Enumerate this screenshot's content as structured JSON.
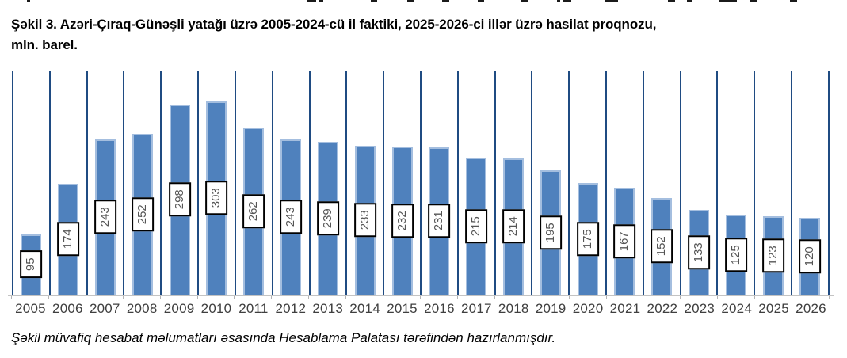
{
  "page": {
    "title_line1": "Şəkil 3. Azəri-Çıraq-Günəşli yatağı üzrə 2005-2024-cü il faktiki, 2025-2026-ci illər üzrə hasilat proqnozu,",
    "title_line2": "mln. barel.",
    "footnote": "Şəkil müvafiq hesabat məlumatları əsasında Hesablama Palatası tərəfindən hazırlanmışdır."
  },
  "chart_data": {
    "type": "bar",
    "title": "Şəkil 3. Azəri-Çıraq-Günəşli yatağı üzrə 2005-2024-cü il faktiki, 2025-2026-ci illər üzrə hasilat proqnozu, mln. barel.",
    "categories": [
      "2005",
      "2006",
      "2007",
      "2008",
      "2009",
      "2010",
      "2011",
      "2012",
      "2013",
      "2014",
      "2015",
      "2016",
      "2017",
      "2018",
      "2019",
      "2020",
      "2021",
      "2022",
      "2023",
      "2024",
      "2025",
      "2026"
    ],
    "values": [
      95,
      174,
      243,
      252,
      298,
      303,
      262,
      243,
      239,
      233,
      232,
      231,
      215,
      214,
      195,
      175,
      167,
      152,
      133,
      125,
      123,
      120
    ],
    "xlabel": "",
    "ylabel": "",
    "ylim": [
      0,
      350
    ],
    "grid": "vertical category separator lines only",
    "legend": "none",
    "data_labels": "values in white boxes with black border, rotated 90° reading bottom-to-top, centered on each bar",
    "colors": {
      "bar_fill": "#4F81BD",
      "bar_edge": "#A4BEDF",
      "gridline": "#1F4B82",
      "axis_line": "#C3C3C3",
      "tick": "#B3B3B3",
      "x_tick_label": "#3F3F3F",
      "data_label_text": "#555555",
      "data_label_border": "#000000",
      "data_label_bg": "#FFFFFF"
    }
  },
  "top_remnant": {
    "marks": [
      [
        34,
        4
      ],
      [
        388,
        11
      ],
      [
        402,
        6
      ],
      [
        468,
        8
      ],
      [
        514,
        8
      ],
      [
        558,
        9
      ],
      [
        603,
        8
      ],
      [
        658,
        8
      ],
      [
        703,
        4
      ],
      [
        711,
        10
      ],
      [
        763,
        17
      ],
      [
        843,
        9
      ],
      [
        867,
        6
      ],
      [
        907,
        23
      ],
      [
        947,
        8
      ],
      [
        997,
        9
      ]
    ]
  }
}
